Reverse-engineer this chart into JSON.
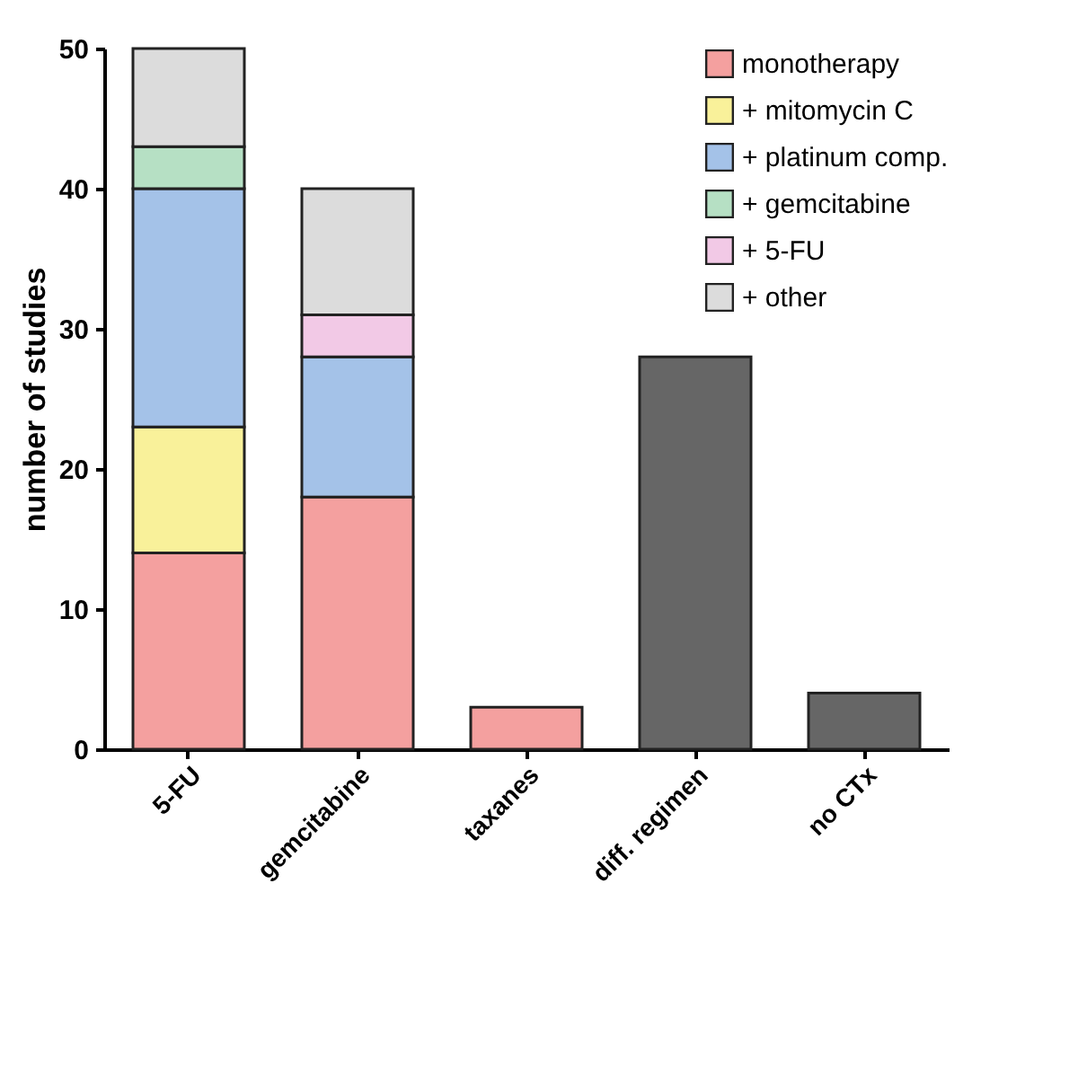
{
  "chart_data": {
    "type": "bar",
    "ylabel": "number of studies",
    "categories": [
      "5-FU",
      "gemcitabine",
      "taxanes",
      "diff. regimen",
      "no CTx"
    ],
    "stacked": true,
    "legend": "top right",
    "ylim": [
      0,
      50
    ],
    "yticks": [
      0,
      10,
      20,
      30,
      40,
      50
    ],
    "series": [
      {
        "name": "monotherapy",
        "color": "#f4a09f",
        "values": [
          14,
          18,
          3,
          null,
          null
        ]
      },
      {
        "name": "+ mitomycin C",
        "color": "#f9f19a",
        "values": [
          9,
          null,
          null,
          null,
          null
        ]
      },
      {
        "name": "+ platinum comp.",
        "color": "#a4c2e8",
        "values": [
          17,
          10,
          null,
          null,
          null
        ]
      },
      {
        "name": "+ gemcitabine",
        "color": "#b6e0c4",
        "values": [
          3,
          null,
          null,
          null,
          null
        ]
      },
      {
        "name": "+ 5-FU",
        "color": "#f2c9e6",
        "values": [
          null,
          3,
          null,
          null,
          null
        ]
      },
      {
        "name": "+ other",
        "color": "#dcdcdc",
        "values": [
          7,
          9,
          null,
          null,
          null
        ]
      },
      {
        "color": "#666666",
        "values": [
          null,
          null,
          null,
          28,
          4
        ]
      }
    ]
  }
}
